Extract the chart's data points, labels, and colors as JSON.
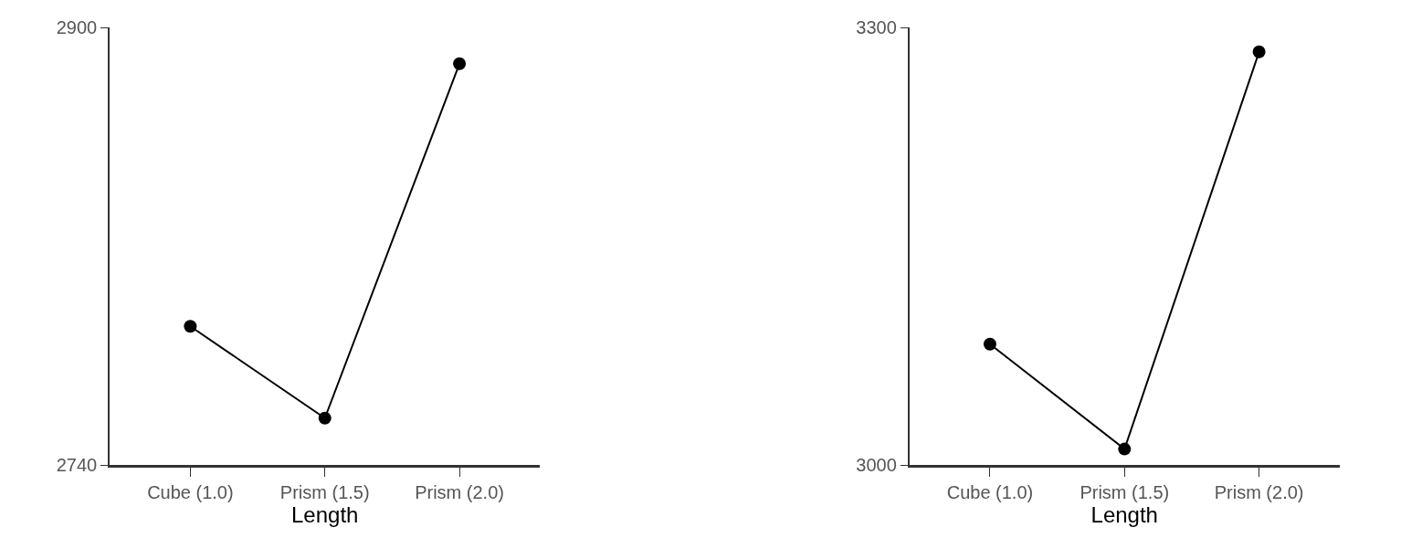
{
  "chart_data": [
    {
      "type": "line",
      "xlabel": "Length",
      "categories": [
        "Cube (1.0)",
        "Prism (1.5)",
        "Prism (2.0)"
      ],
      "series": [
        {
          "color": "#000000",
          "values": [
            2790.7,
            2757.1,
            2886.7
          ]
        }
      ],
      "ylim": [
        2740,
        2900
      ],
      "yticks": [
        2740,
        2900
      ],
      "marker": "circle",
      "line_style": "solid"
    },
    {
      "type": "line",
      "xlabel": "Length",
      "categories": [
        "Cube (1.0)",
        "Prism (1.5)",
        "Prism (2.0)"
      ],
      "series": [
        {
          "color": "#000000",
          "values": [
            3082.8,
            3010.9,
            3283.2
          ]
        }
      ],
      "ylim": [
        3000,
        3300
      ],
      "yticks": [
        3000,
        3300
      ],
      "marker": "circle",
      "line_style": "solid"
    }
  ]
}
